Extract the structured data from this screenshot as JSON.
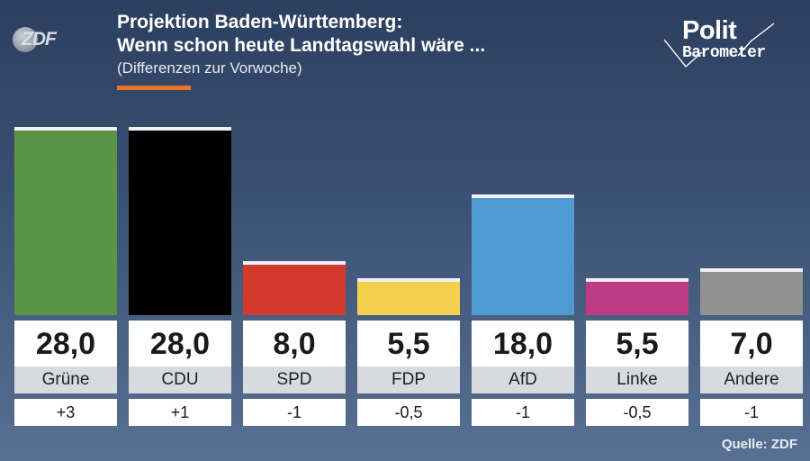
{
  "header": {
    "logo_text": "ZDF",
    "title_line1": "Projektion Baden-Württemberg:",
    "title_line2": "Wenn schon heute Landtagswahl wäre ...",
    "subtitle": "(Differenzen zur Vorwoche)",
    "brand_line1": "Polit",
    "brand_line2": "Barometer"
  },
  "chart_data": {
    "type": "bar",
    "title": "Projektion Baden-Württemberg: Wenn schon heute Landtagswahl wäre ...",
    "subtitle": "(Differenzen zur Vorwoche)",
    "categories": [
      "Grüne",
      "CDU",
      "SPD",
      "FDP",
      "AfD",
      "Linke",
      "Andere"
    ],
    "values": [
      28.0,
      28.0,
      8.0,
      5.5,
      18.0,
      5.5,
      7.0
    ],
    "value_labels": [
      "28,0",
      "28,0",
      "8,0",
      "5,5",
      "18,0",
      "5,5",
      "7,0"
    ],
    "differences": [
      "+3",
      "+1",
      "-1",
      "-0,5",
      "-1",
      "-0,5",
      "-1"
    ],
    "colors": [
      "#5a9447",
      "#000000",
      "#d33a2b",
      "#f4d14c",
      "#4f9ad0",
      "#bd3b82",
      "#919191"
    ],
    "ylim": [
      0,
      28
    ],
    "grid": false,
    "legend": "none"
  },
  "footer": {
    "source": "Quelle: ZDF"
  }
}
